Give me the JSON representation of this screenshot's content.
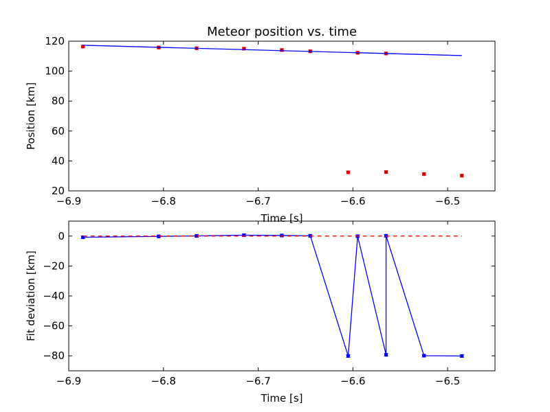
{
  "chart_data": [
    {
      "type": "scatter",
      "title": "Meteor position vs. time",
      "xlabel": "Time [s]",
      "ylabel": "Position [km]",
      "xlim": [
        -6.9,
        -6.45
      ],
      "ylim": [
        20,
        120
      ],
      "xticks": [
        -6.9,
        -6.8,
        -6.7,
        -6.6,
        -6.5
      ],
      "xtick_labels": [
        "−6.9",
        "−6.8",
        "−6.7",
        "−6.6",
        "−6.5"
      ],
      "yticks": [
        20,
        40,
        60,
        80,
        100,
        120
      ],
      "ytick_labels": [
        "20",
        "40",
        "60",
        "80",
        "100",
        "120"
      ],
      "grid": false,
      "series": [
        {
          "kind": "points",
          "color": "#ff0000",
          "marker_color": "#ff0000",
          "x": [
            -6.885,
            -6.805,
            -6.765,
            -6.715,
            -6.675,
            -6.645,
            -6.605,
            -6.595,
            -6.565,
            -6.565,
            -6.525,
            -6.485
          ],
          "y": [
            116.4,
            115.8,
            115.3,
            115.0,
            114.1,
            113.3,
            32.4,
            112.3,
            32.6,
            111.8,
            31.2,
            30.2
          ]
        },
        {
          "kind": "line",
          "color": "#0000ff",
          "x": [
            -6.885,
            -6.485
          ],
          "y": [
            117.3,
            110.4
          ]
        }
      ]
    },
    {
      "type": "line",
      "title": "",
      "xlabel": "Time [s]",
      "ylabel": "Fit deviation [km]",
      "xlim": [
        -6.9,
        -6.45
      ],
      "ylim": [
        -90,
        10
      ],
      "xticks": [
        -6.9,
        -6.8,
        -6.7,
        -6.6,
        -6.5
      ],
      "xtick_labels": [
        "−6.9",
        "−6.8",
        "−6.7",
        "−6.6",
        "−6.5"
      ],
      "yticks": [
        -80,
        -60,
        -40,
        -20,
        0
      ],
      "ytick_labels": [
        "−80",
        "−60",
        "−40",
        "−20",
        "0"
      ],
      "grid": false,
      "series": [
        {
          "kind": "line-markers",
          "color": "#0000ff",
          "x": [
            -6.885,
            -6.805,
            -6.765,
            -6.715,
            -6.675,
            -6.645,
            -6.605,
            -6.595,
            -6.565,
            -6.565,
            -6.525,
            -6.485
          ],
          "y": [
            -0.8,
            -0.2,
            0.1,
            0.6,
            0.4,
            0.2,
            -80.1,
            -0.1,
            -79.3,
            0.2,
            -79.9,
            -80.1
          ]
        },
        {
          "kind": "dashed",
          "color": "#ff0000",
          "x": [
            -6.885,
            -6.485
          ],
          "y": [
            0,
            0
          ]
        }
      ]
    }
  ]
}
